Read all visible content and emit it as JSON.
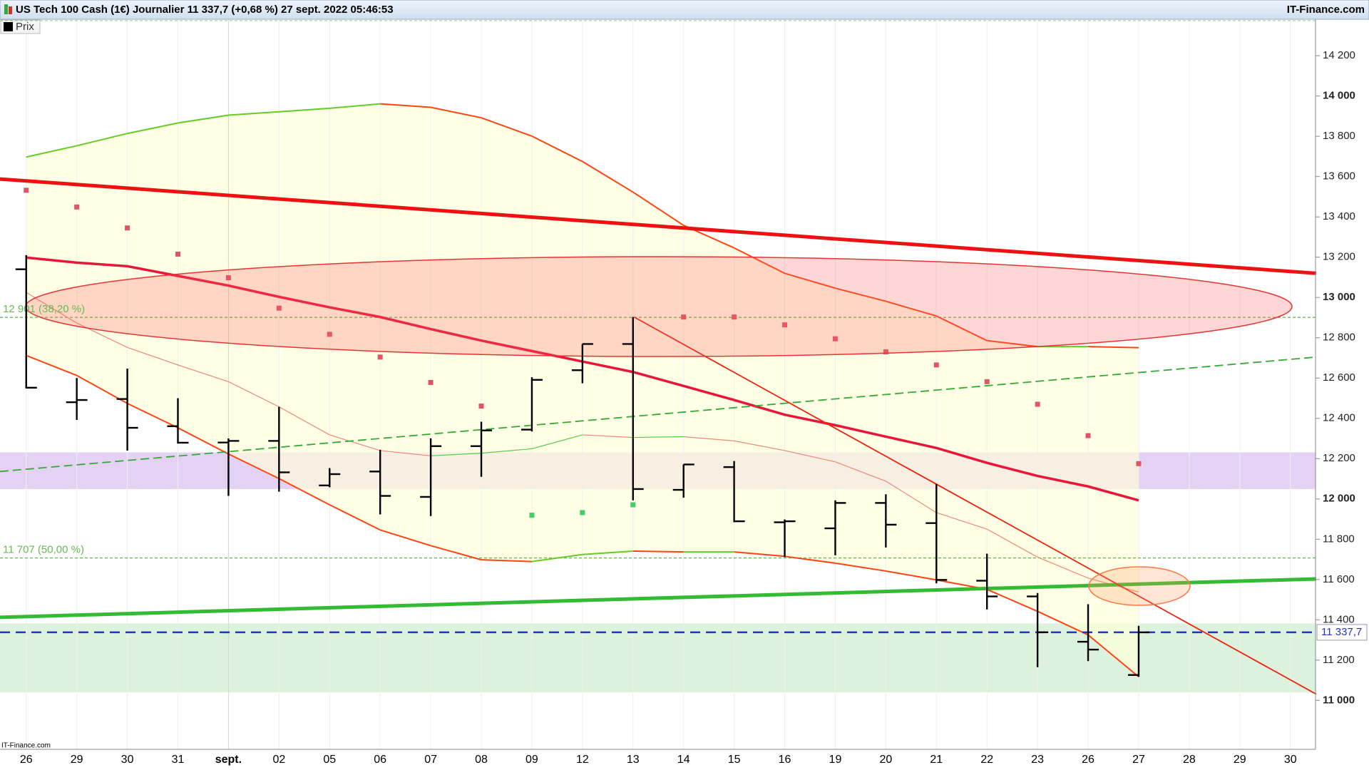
{
  "chart_data": {
    "type": "ohlc",
    "title": "US Tech 100 Cash (1€) Journalier 11 337,7 (+0,68 %) 27 sept. 2022 05:46:53",
    "source": "IT-Finance.com",
    "watermark": "IT-Finance.com",
    "categories": [
      "26",
      "29",
      "30",
      "31",
      "sept.",
      "02",
      "05",
      "06",
      "07",
      "08",
      "09",
      "12",
      "13",
      "14",
      "15",
      "16",
      "19",
      "20",
      "21",
      "22",
      "23",
      "26",
      "27",
      "28",
      "29",
      "30"
    ],
    "ylim": [
      10757,
      14381
    ],
    "yticks": [
      {
        "value": 11000,
        "label": "11 000"
      },
      {
        "value": 11200,
        "label": "11 200"
      },
      {
        "value": 11400,
        "label": "11 400"
      },
      {
        "value": 11600,
        "label": "11 600"
      },
      {
        "value": 11800,
        "label": "11 800"
      },
      {
        "value": 12000,
        "label": "12 000"
      },
      {
        "value": 12200,
        "label": "12 200"
      },
      {
        "value": 12400,
        "label": "12 400"
      },
      {
        "value": 12600,
        "label": "12 600"
      },
      {
        "value": 12800,
        "label": "12 800"
      },
      {
        "value": 13000,
        "label": "13 000"
      },
      {
        "value": 13200,
        "label": "13 200"
      },
      {
        "value": 13400,
        "label": "13 400"
      },
      {
        "value": 13600,
        "label": "13 600"
      },
      {
        "value": 13800,
        "label": "13 800"
      },
      {
        "value": 14000,
        "label": "14 000"
      },
      {
        "value": 14200,
        "label": "14 200"
      }
    ],
    "ohlc": {
      "name": "Prix",
      "color": "#000000",
      "open": [
        13140,
        12480,
        12496,
        12361,
        12280,
        12288,
        12067,
        12136,
        12010,
        12262,
        12344,
        12639,
        12769,
        12045,
        12158,
        11884,
        11854,
        11980,
        11880,
        11594,
        11516,
        11291,
        11126,
        null,
        null,
        null
      ],
      "high": [
        13210,
        12600,
        12647,
        12500,
        12300,
        12457,
        12153,
        12244,
        12301,
        12383,
        12604,
        12769,
        12903,
        12171,
        12188,
        11898,
        11993,
        12023,
        12075,
        11728,
        11533,
        11477,
        11370,
        null,
        null,
        null
      ],
      "low": [
        12548,
        12392,
        12240,
        12275,
        12015,
        12036,
        12058,
        11923,
        11915,
        12110,
        12335,
        12574,
        11993,
        12006,
        11884,
        11711,
        11720,
        11759,
        11581,
        11451,
        11165,
        11195,
        11117,
        null,
        null,
        null
      ],
      "close": [
        12552,
        12491,
        12353,
        12279,
        12288,
        12132,
        12123,
        12015,
        12262,
        12340,
        12591,
        12769,
        12049,
        12171,
        11889,
        11889,
        11980,
        11872,
        11598,
        11516,
        11338,
        11252,
        11337.7,
        null,
        null,
        null
      ]
    },
    "bands": {
      "up_color": "#66cc22",
      "down_color": "#ff4411",
      "mid_up_color": "#55cc44",
      "mid_down_color": "#ee8877",
      "fill": "#ffffd8",
      "upper": [
        13697,
        13753,
        13814,
        13866,
        13905,
        13922,
        13939,
        13961,
        13944,
        13892,
        13801,
        13675,
        13523,
        13358,
        13246,
        13120,
        13046,
        12981,
        12908,
        12786,
        12756,
        12756,
        12751,
        null,
        null,
        null
      ],
      "middle": [
        13025,
        12873,
        12752,
        12665,
        12582,
        12457,
        12318,
        12240,
        12214,
        12227,
        12249,
        12318,
        12305,
        12309,
        12288,
        12240,
        12184,
        12088,
        11932,
        11850,
        11711,
        11607,
        11538,
        null,
        null,
        null
      ],
      "lower": [
        12712,
        12613,
        12474,
        12353,
        12223,
        12101,
        11971,
        11846,
        11768,
        11698,
        11689,
        11724,
        11741,
        11737,
        11737,
        11715,
        11681,
        11642,
        11598,
        11551,
        11442,
        11325,
        11117,
        null,
        null,
        null
      ]
    },
    "sar": {
      "up_color": "#44cc66",
      "down_color": "#e05566",
      "values": [
        13532,
        13449,
        13345,
        13215,
        13098,
        12947,
        12817,
        12704,
        12578,
        12461,
        11919,
        11932,
        11971,
        12903,
        12903,
        12864,
        12795,
        12730,
        12665,
        12582,
        12470,
        12314,
        12175,
        null,
        null,
        null
      ]
    },
    "average": {
      "color": "#e8173a",
      "values": [
        13198,
        13173,
        13155,
        13107,
        13059,
        13003,
        12951,
        12903,
        12843,
        12786,
        12734,
        12682,
        12630,
        12561,
        12491,
        12418,
        12366,
        12309,
        12253,
        12179,
        12114,
        12062,
        11993,
        null,
        null,
        null
      ]
    },
    "trendlines": [
      {
        "color": "#ee1111",
        "width": 5,
        "dash": false,
        "x": [
          -0.52,
          25.51
        ],
        "values": [
          13588,
          13120
        ]
      },
      {
        "color": "#33bb33",
        "width": 5,
        "dash": false,
        "x": [
          -0.52,
          25.51
        ],
        "values": [
          11412,
          11603
        ]
      },
      {
        "color": "#33aa33",
        "width": 1.8,
        "dash": true,
        "x": [
          -0.52,
          25.51
        ],
        "values": [
          12136,
          12704
        ]
      },
      {
        "color": "#ee2211",
        "width": 1.8,
        "dash": false,
        "x": [
          12.02,
          25.51
        ],
        "values": [
          12903,
          11031
        ]
      }
    ],
    "zones": [
      {
        "from": 12049,
        "to": 12231,
        "color": "#e4d2f4"
      },
      {
        "from": 11039,
        "to": 11382,
        "color": "#ddf2dd"
      }
    ],
    "levels": [
      {
        "value": 12901,
        "label": "12 901 (38,20 %)",
        "color": "#66bb55"
      },
      {
        "value": 11707,
        "label": "11 707 (50,00 %)",
        "color": "#66bb55"
      }
    ],
    "current": {
      "value": 11337.7,
      "label": "11 337,7",
      "color": "#2233cc"
    },
    "grid": true
  }
}
